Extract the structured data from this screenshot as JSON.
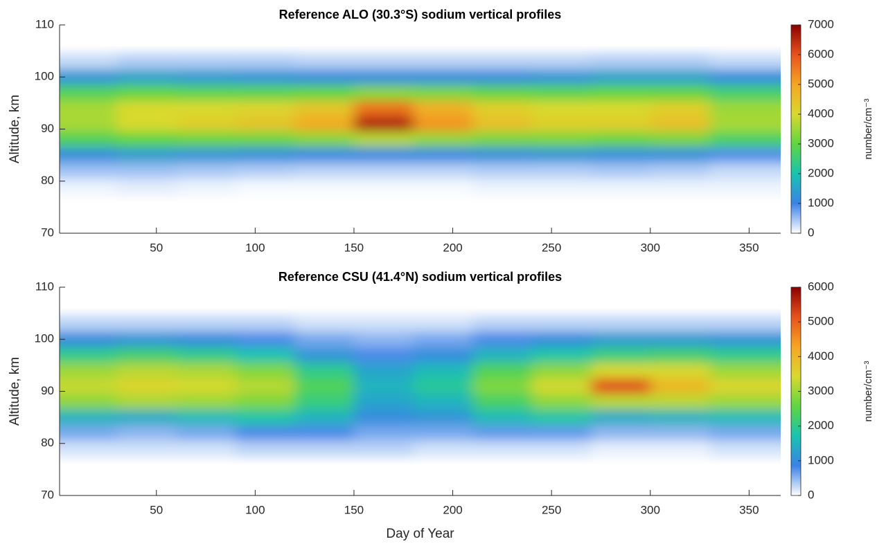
{
  "chart_data": [
    {
      "type": "heatmap",
      "title": "Reference ALO (30.3°S) sodium vertical profiles",
      "ylabel": "Altitude, km",
      "colorbar_label": "number/cm⁻³",
      "x": [
        15,
        45,
        75,
        105,
        135,
        165,
        195,
        225,
        255,
        285,
        315,
        345
      ],
      "y": [
        103,
        100,
        97,
        94,
        91,
        88,
        85,
        82,
        79
      ],
      "values": [
        [
          300,
          400,
          400,
          400,
          350,
          350,
          350,
          350,
          350,
          400,
          400,
          300
        ],
        [
          1300,
          1500,
          1400,
          1300,
          1200,
          1200,
          1200,
          1200,
          1300,
          1500,
          1500,
          1200
        ],
        [
          2800,
          3000,
          2900,
          2900,
          3000,
          3300,
          3200,
          3000,
          2900,
          3000,
          3000,
          2600
        ],
        [
          3600,
          4000,
          4000,
          4100,
          4400,
          5600,
          4800,
          4200,
          4000,
          4000,
          4200,
          3500
        ],
        [
          3600,
          4000,
          4200,
          4400,
          4900,
          6600,
          5200,
          4500,
          4200,
          4200,
          4500,
          3600
        ],
        [
          2800,
          3000,
          3100,
          3100,
          3300,
          3700,
          3400,
          3200,
          3200,
          3100,
          3200,
          2700
        ],
        [
          1200,
          1400,
          1300,
          1200,
          1100,
          1100,
          1100,
          1200,
          1300,
          1200,
          1200,
          900
        ],
        [
          500,
          500,
          450,
          400,
          350,
          350,
          350,
          400,
          400,
          450,
          400,
          300
        ],
        [
          100,
          150,
          100,
          50,
          50,
          50,
          50,
          100,
          100,
          100,
          100,
          100
        ]
      ],
      "xlim": [
        1,
        366
      ],
      "xticks": [
        50,
        100,
        150,
        200,
        250,
        300,
        350
      ],
      "ylim": [
        70,
        110
      ],
      "yticks": [
        70,
        80,
        90,
        100,
        110
      ],
      "clim": [
        0,
        7000
      ],
      "cticks": [
        0,
        1000,
        2000,
        3000,
        4000,
        5000,
        6000,
        7000
      ],
      "colormap": [
        "#ffffff",
        "#3b82e6",
        "#17c4b0",
        "#5fd641",
        "#d9d92e",
        "#f5a623",
        "#e8521c",
        "#8b0000"
      ]
    },
    {
      "type": "heatmap",
      "title": "Reference CSU (41.4°N) sodium vertical profiles",
      "ylabel": "Altitude, km",
      "xlabel": "Day of Year",
      "colorbar_label": "number/cm⁻³",
      "x": [
        15,
        45,
        75,
        105,
        135,
        165,
        195,
        225,
        255,
        285,
        315,
        345
      ],
      "y": [
        103,
        100,
        97,
        94,
        91,
        88,
        85,
        82,
        79
      ],
      "values": [
        [
          300,
          300,
          300,
          300,
          200,
          200,
          200,
          300,
          300,
          300,
          300,
          300
        ],
        [
          1000,
          1100,
          1000,
          800,
          600,
          500,
          600,
          800,
          1000,
          1200,
          1200,
          1100
        ],
        [
          2000,
          2200,
          2000,
          1700,
          1100,
          800,
          1000,
          1500,
          1800,
          2100,
          2200,
          2000
        ],
        [
          3000,
          3200,
          3100,
          2800,
          2000,
          1300,
          1600,
          2400,
          2900,
          3400,
          3400,
          3000
        ],
        [
          3300,
          3500,
          3400,
          3200,
          2400,
          1500,
          1900,
          2800,
          3400,
          5200,
          4000,
          3500
        ],
        [
          2900,
          3100,
          3000,
          2800,
          2100,
          1300,
          1500,
          2300,
          2900,
          3200,
          3200,
          3000
        ],
        [
          1500,
          1400,
          1600,
          1800,
          1500,
          1000,
          1100,
          1600,
          1800,
          1400,
          1500,
          1600
        ],
        [
          600,
          500,
          600,
          800,
          800,
          600,
          600,
          700,
          700,
          500,
          500,
          600
        ],
        [
          200,
          200,
          200,
          300,
          300,
          300,
          200,
          200,
          200,
          100,
          100,
          200
        ]
      ],
      "xlim": [
        1,
        366
      ],
      "xticks": [
        50,
        100,
        150,
        200,
        250,
        300,
        350
      ],
      "ylim": [
        70,
        110
      ],
      "yticks": [
        70,
        80,
        90,
        100,
        110
      ],
      "clim": [
        0,
        6000
      ],
      "cticks": [
        0,
        1000,
        2000,
        3000,
        4000,
        5000,
        6000
      ],
      "colormap": [
        "#ffffff",
        "#3b82e6",
        "#17c4b0",
        "#5fd641",
        "#d9d92e",
        "#f5a623",
        "#e8521c",
        "#8b0000"
      ]
    }
  ]
}
